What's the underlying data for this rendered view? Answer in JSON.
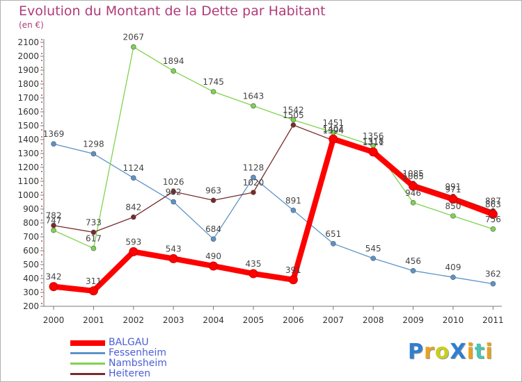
{
  "title": "Evolution du Montant de la Dette par Habitant",
  "subtitle": "(en €)",
  "brand": "ProXiti",
  "brand_colors": [
    "#2f7fd0",
    "#e8a21f",
    "#c9cf1f",
    "#2f7fd0",
    "#e8a21f",
    "#49c5b1",
    "#e8a21f"
  ],
  "chart_data": {
    "type": "line",
    "title": "Evolution du Montant de la Dette par Habitant",
    "ylabel": "(en €)",
    "x": [
      "2000",
      "2001",
      "2002",
      "2003",
      "2004",
      "2005",
      "2006",
      "2007",
      "2008",
      "2009",
      "2010",
      "2011"
    ],
    "ylim": [
      200,
      2100
    ],
    "yticks": [
      200,
      300,
      400,
      500,
      600,
      700,
      800,
      900,
      1000,
      1100,
      1200,
      1300,
      1400,
      1500,
      1600,
      1700,
      1800,
      1900,
      2000,
      2100
    ],
    "grid": false,
    "legend": "bottom-left",
    "series": [
      {
        "name": "Fessenheim",
        "color": "#5b93c8",
        "values": [
          1369,
          1298,
          1124,
          952,
          684,
          1128,
          891,
          651,
          545,
          456,
          409,
          362
        ]
      },
      {
        "name": "Nambsheim",
        "color": "#7fd24e",
        "values": [
          747,
          617,
          2067,
          1894,
          1745,
          1643,
          1542,
          1451,
          1356,
          946,
          850,
          756
        ]
      },
      {
        "name": "Heiteren",
        "color": "#7a2a2a",
        "values": [
          782,
          733,
          842,
          1026,
          963,
          1020,
          1505,
          1394,
          1318,
          1085,
          991,
          887
        ]
      },
      {
        "name": "BALGAU",
        "color": "#ff0000",
        "values": [
          342,
          311,
          593,
          543,
          490,
          435,
          391,
          1404,
          1311,
          1065,
          971,
          863
        ]
      }
    ],
    "legend_order": [
      "BALGAU",
      "Fessenheim",
      "Nambsheim",
      "Heiteren"
    ]
  }
}
